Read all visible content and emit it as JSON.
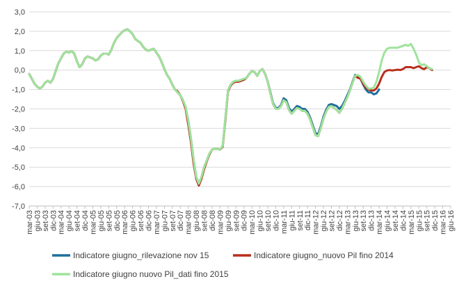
{
  "chart_data": {
    "type": "line",
    "title": "",
    "xlabel": "",
    "ylabel": "",
    "ylim": [
      -7.0,
      3.0
    ],
    "yticks": [
      "3,0",
      "2,0",
      "1,0",
      "0,0",
      "-1,0",
      "-2,0",
      "-3,0",
      "-4,0",
      "-5,0",
      "-6,0",
      "-7,0"
    ],
    "ytick_values": [
      3,
      2,
      1,
      0,
      -1,
      -2,
      -3,
      -4,
      -5,
      -6,
      -7
    ],
    "grid": "horizontal",
    "legend_position": "bottom",
    "x_labels": [
      "mar-03",
      "giu-03",
      "set-03",
      "dic-03",
      "mar-04",
      "giu-04",
      "set-04",
      "dic-04",
      "mar-05",
      "giu-05",
      "set-05",
      "dic-05",
      "mar-06",
      "giu-06",
      "set-06",
      "dic-06",
      "mar-07",
      "giu-07",
      "set-07",
      "dic-07",
      "mar-08",
      "giu-08",
      "set-08",
      "dic-08",
      "mar-09",
      "giu-09",
      "set-09",
      "dic-09",
      "mar-10",
      "giu-10",
      "set-10",
      "dic-10",
      "mar-11",
      "giu-11",
      "set-11",
      "dic-11",
      "mar-12",
      "giu-12",
      "set-12",
      "dic-12",
      "mar-13",
      "giu-13",
      "set-13",
      "dic-13",
      "mar-14",
      "giu-14",
      "set-14",
      "dic-14",
      "mar-15",
      "giu-15",
      "set-15",
      "dic-15",
      "mar-16",
      "giu-16"
    ],
    "x_start": "2003-03",
    "series": [
      {
        "name": "Indicatore giugno_rilevazione nov 15",
        "color": "#1f6e9c",
        "start": "2003-03",
        "values": [
          -0.2,
          -0.45,
          -0.7,
          -0.85,
          -0.95,
          -0.85,
          -0.65,
          -0.55,
          -0.65,
          -0.45,
          -0.05,
          0.35,
          0.6,
          0.85,
          0.95,
          0.9,
          0.98,
          0.85,
          0.45,
          0.15,
          0.3,
          0.6,
          0.7,
          0.65,
          0.6,
          0.5,
          0.55,
          0.75,
          0.85,
          0.85,
          0.8,
          1.05,
          1.4,
          1.65,
          1.8,
          1.95,
          2.05,
          2.1,
          2.0,
          1.85,
          1.6,
          1.5,
          1.4,
          1.2,
          1.05,
          1.0,
          1.05,
          1.1,
          0.9,
          0.7,
          0.4,
          0.05,
          -0.25,
          -0.45,
          -0.75,
          -1.0,
          -1.15,
          -1.3,
          -1.55,
          -1.9,
          -2.6,
          -3.5,
          -4.6,
          -5.5,
          -5.85,
          -5.5,
          -5.0,
          -4.65,
          -4.3,
          -4.1,
          -4.05,
          -4.05,
          -4.1,
          -3.9,
          -2.5,
          -1.05,
          -0.75,
          -0.6,
          -0.55,
          -0.55,
          -0.5,
          -0.45,
          -0.4,
          -0.2,
          -0.05,
          -0.1,
          -0.3,
          -0.05,
          0.05,
          -0.2,
          -0.6,
          -1.15,
          -1.7,
          -1.95,
          -1.95,
          -1.8,
          -1.45,
          -1.55,
          -1.95,
          -2.15,
          -2.0,
          -1.85,
          -1.9,
          -2.0,
          -2.0,
          -2.15,
          -2.45,
          -2.85,
          -3.25,
          -3.3,
          -2.9,
          -2.4,
          -2.05,
          -1.8,
          -1.75,
          -1.8,
          -1.85,
          -2.0,
          -1.85,
          -1.6,
          -1.3,
          -1.0,
          -0.6,
          -0.25,
          -0.35,
          -0.45,
          -0.75,
          -1.0,
          -1.15,
          -1.15,
          -1.25,
          -1.2,
          -1.0
        ]
      },
      {
        "name": "Indicatore giugno_nuovo Pil fino 2014",
        "color": "#b92e1c",
        "start": "2003-03",
        "values": [
          -0.2,
          -0.45,
          -0.7,
          -0.85,
          -0.95,
          -0.85,
          -0.65,
          -0.55,
          -0.65,
          -0.45,
          -0.05,
          0.35,
          0.6,
          0.85,
          0.95,
          0.9,
          0.98,
          0.85,
          0.45,
          0.15,
          0.3,
          0.6,
          0.7,
          0.65,
          0.6,
          0.5,
          0.55,
          0.75,
          0.85,
          0.85,
          0.8,
          1.05,
          1.4,
          1.65,
          1.8,
          1.95,
          2.05,
          2.1,
          2.0,
          1.85,
          1.6,
          1.5,
          1.4,
          1.2,
          1.05,
          1.0,
          1.05,
          1.1,
          0.9,
          0.7,
          0.4,
          0.05,
          -0.25,
          -0.45,
          -0.75,
          -1.0,
          -1.1,
          -1.3,
          -1.6,
          -2.0,
          -2.8,
          -3.7,
          -4.8,
          -5.6,
          -5.95,
          -5.6,
          -5.1,
          -4.7,
          -4.35,
          -4.1,
          -4.05,
          -4.05,
          -4.1,
          -3.95,
          -2.6,
          -1.1,
          -0.8,
          -0.65,
          -0.6,
          -0.6,
          -0.55,
          -0.5,
          -0.4,
          -0.2,
          -0.05,
          -0.1,
          -0.3,
          -0.05,
          0.05,
          -0.2,
          -0.6,
          -1.2,
          -1.75,
          -2.0,
          -2.0,
          -1.85,
          -1.55,
          -1.65,
          -2.05,
          -2.25,
          -2.1,
          -1.95,
          -2.0,
          -2.1,
          -2.1,
          -2.25,
          -2.55,
          -2.95,
          -3.35,
          -3.4,
          -3.0,
          -2.5,
          -2.15,
          -1.9,
          -1.85,
          -1.95,
          -2.05,
          -2.2,
          -2.0,
          -1.7,
          -1.4,
          -1.05,
          -0.65,
          -0.3,
          -0.4,
          -0.45,
          -0.7,
          -0.9,
          -1.0,
          -1.05,
          -1.05,
          -0.95,
          -0.7,
          -0.35,
          -0.1,
          -0.02,
          0.0,
          -0.02,
          0.0,
          0.02,
          0.0,
          0.05,
          0.15,
          0.15,
          0.15,
          0.1,
          0.15,
          0.2,
          0.1,
          0.05,
          0.15,
          0.1,
          0.0
        ]
      },
      {
        "name": "Indicatore giugno nuovo Pil_dati fino 2015",
        "color": "#9fe39c",
        "start": "2003-03",
        "values": [
          -0.2,
          -0.45,
          -0.7,
          -0.85,
          -0.95,
          -0.85,
          -0.65,
          -0.55,
          -0.65,
          -0.45,
          -0.05,
          0.35,
          0.6,
          0.85,
          0.95,
          0.9,
          0.98,
          0.85,
          0.45,
          0.15,
          0.3,
          0.6,
          0.7,
          0.65,
          0.6,
          0.5,
          0.55,
          0.75,
          0.85,
          0.85,
          0.8,
          1.05,
          1.4,
          1.65,
          1.8,
          1.95,
          2.05,
          2.1,
          2.0,
          1.85,
          1.6,
          1.5,
          1.4,
          1.2,
          1.05,
          1.0,
          1.05,
          1.1,
          0.9,
          0.7,
          0.4,
          0.05,
          -0.25,
          -0.45,
          -0.75,
          -1.0,
          -1.15,
          -1.3,
          -1.55,
          -1.9,
          -2.6,
          -3.5,
          -4.6,
          -5.5,
          -5.85,
          -5.5,
          -5.0,
          -4.65,
          -4.3,
          -4.1,
          -4.05,
          -4.05,
          -4.1,
          -3.9,
          -2.5,
          -1.05,
          -0.75,
          -0.6,
          -0.55,
          -0.55,
          -0.5,
          -0.45,
          -0.4,
          -0.2,
          -0.05,
          -0.1,
          -0.3,
          -0.05,
          0.05,
          -0.2,
          -0.6,
          -1.2,
          -1.75,
          -2.0,
          -2.0,
          -1.85,
          -1.55,
          -1.65,
          -2.05,
          -2.25,
          -2.1,
          -1.95,
          -2.0,
          -2.1,
          -2.1,
          -2.25,
          -2.55,
          -2.95,
          -3.35,
          -3.4,
          -3.0,
          -2.5,
          -2.15,
          -1.9,
          -1.85,
          -1.95,
          -2.05,
          -2.2,
          -2.0,
          -1.7,
          -1.4,
          -1.05,
          -0.65,
          -0.3,
          -0.25,
          -0.35,
          -0.6,
          -0.8,
          -0.95,
          -0.95,
          -0.9,
          -0.6,
          -0.1,
          0.5,
          0.9,
          1.1,
          1.15,
          1.15,
          1.15,
          1.15,
          1.2,
          1.25,
          1.3,
          1.25,
          1.35,
          1.1,
          0.8,
          0.4,
          0.25,
          0.3,
          0.2,
          0.1,
          0.05
        ]
      }
    ]
  }
}
